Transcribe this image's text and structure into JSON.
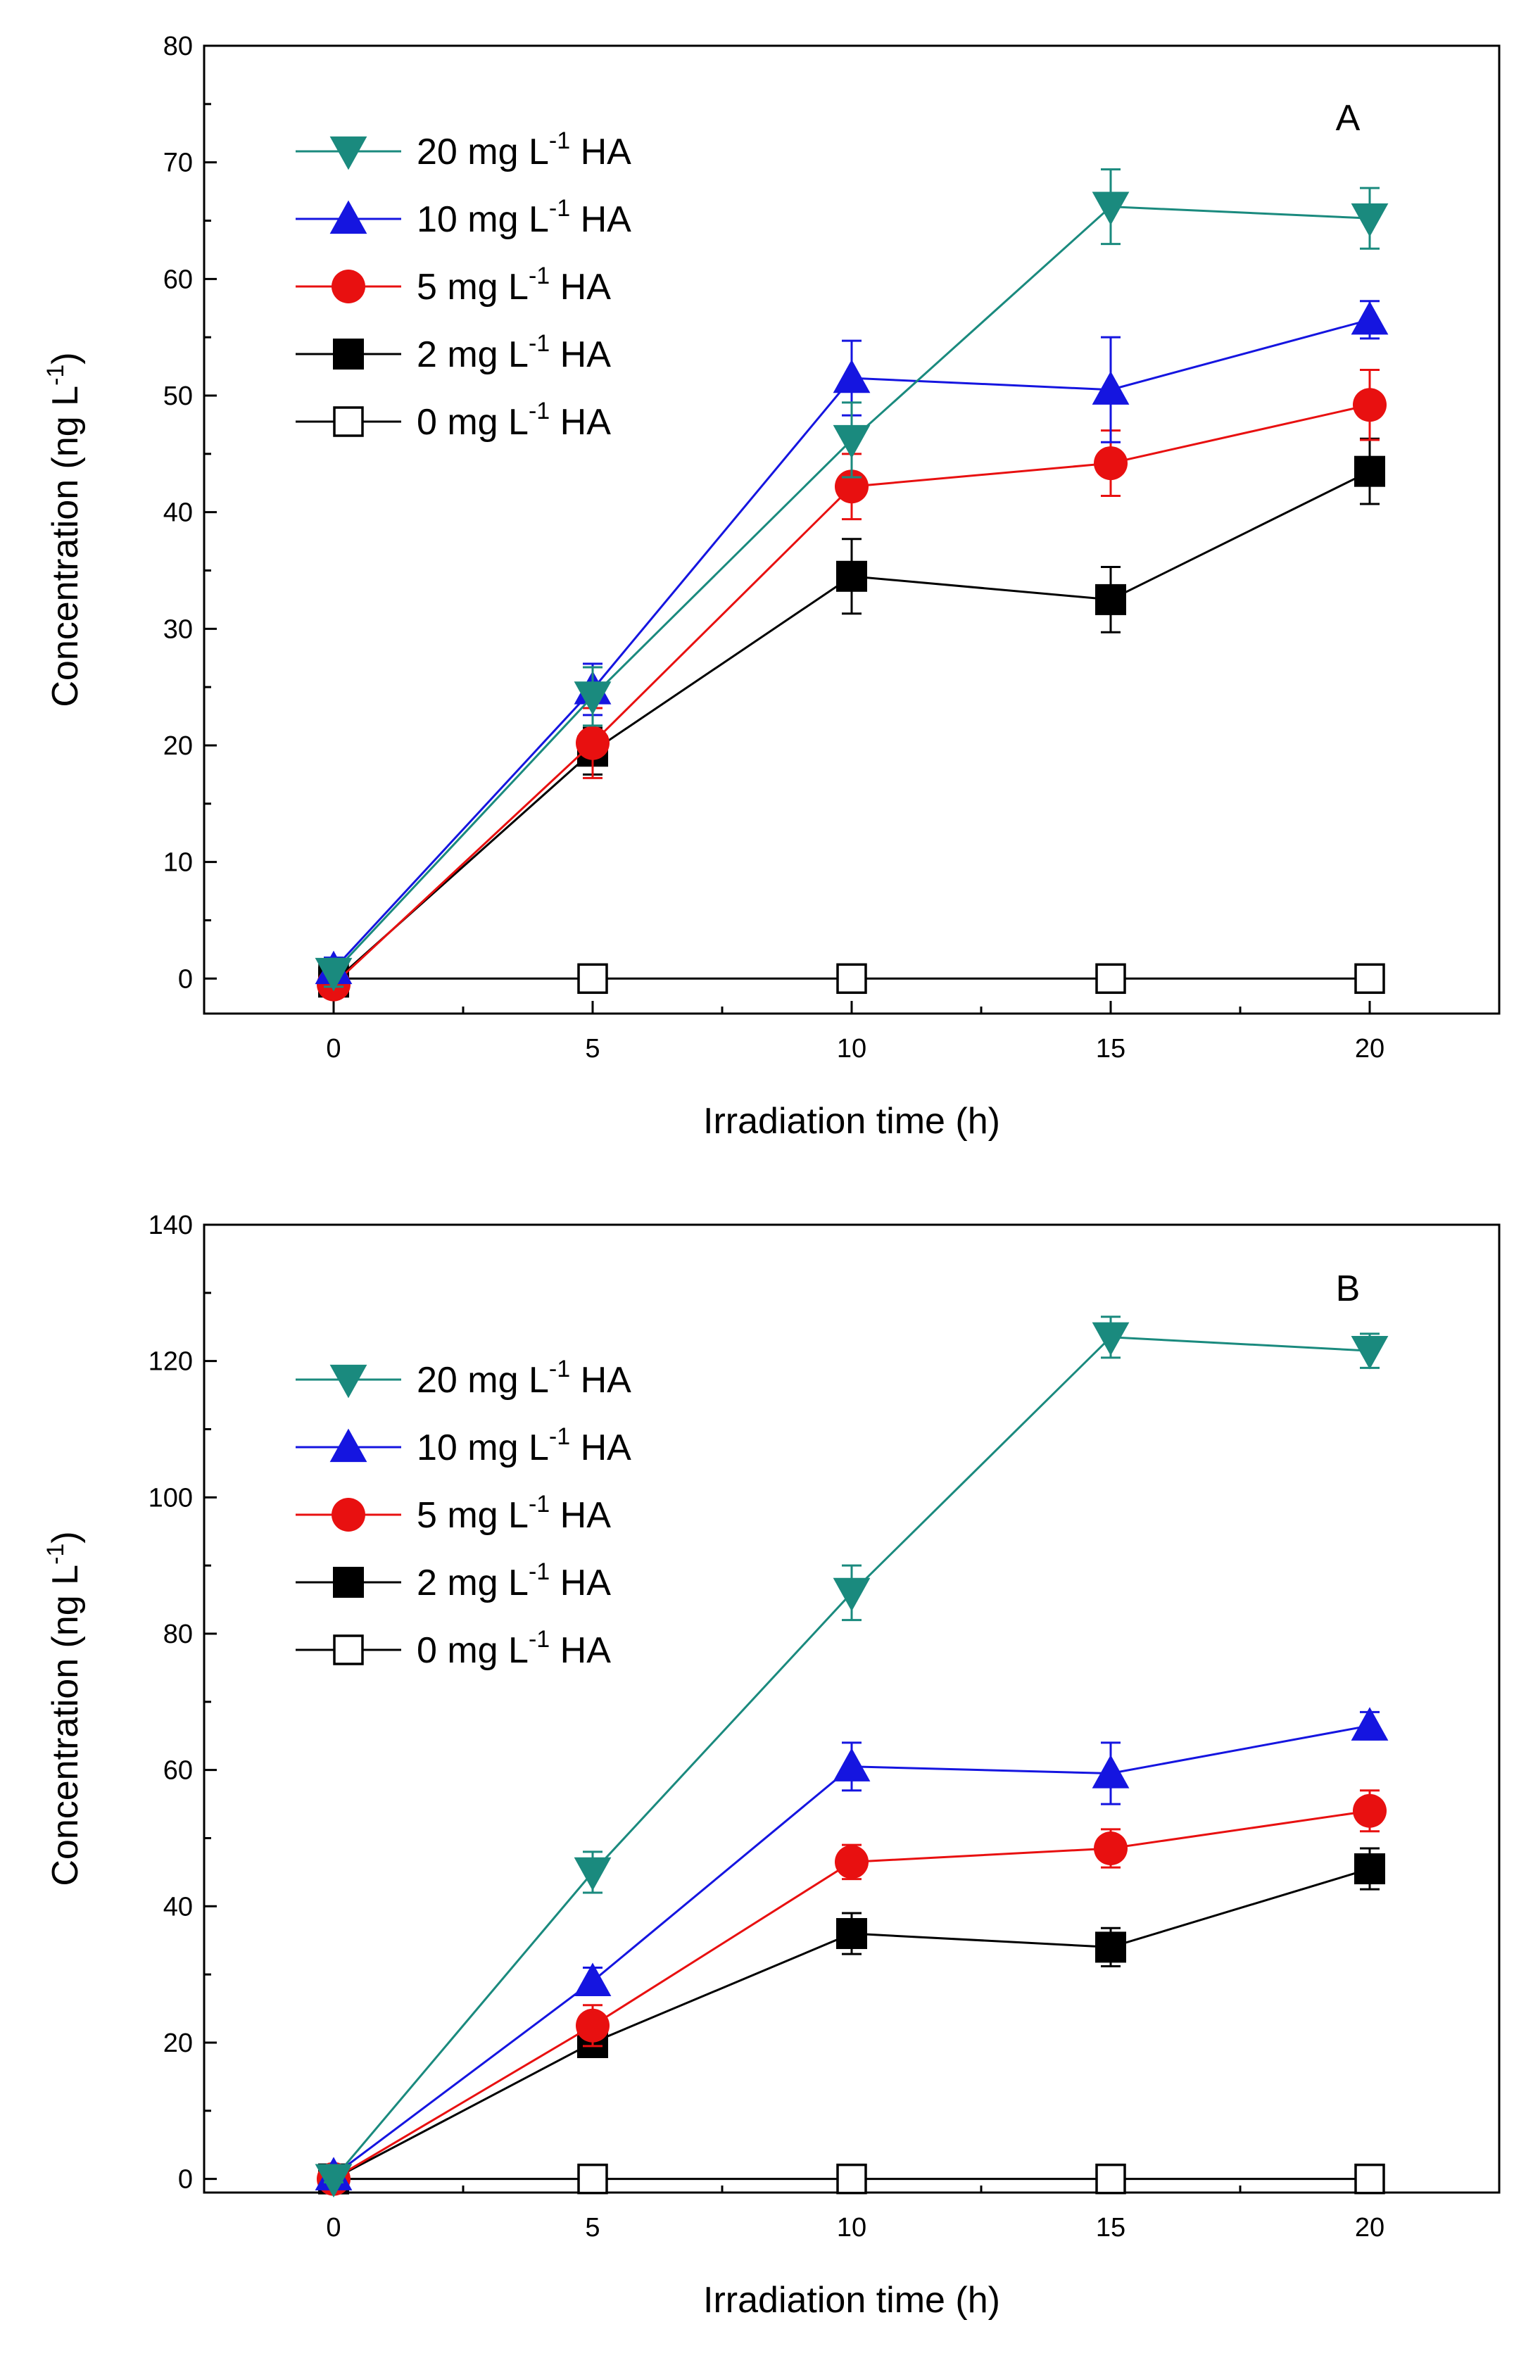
{
  "chart_data": [
    {
      "type": "line",
      "panel_label": "A",
      "title": "",
      "xlabel": "Irradiation time (h)",
      "ylabel": "Concentration (ng L",
      "ylabel_sup": "-1",
      "ylabel_end": ")",
      "xlim": [
        -2.5,
        22.5
      ],
      "ylim": [
        -3,
        80
      ],
      "xticks": [
        0,
        5,
        10,
        15,
        20
      ],
      "yticks": [
        0,
        10,
        20,
        30,
        40,
        50,
        60,
        70,
        80
      ],
      "x": [
        0,
        5,
        10,
        15,
        20
      ],
      "legend_position": "top-left",
      "series": [
        {
          "name": "20 mg L-1 HA",
          "legend_pre": "20 mg L",
          "legend_sup": "-1",
          "legend_post": " HA",
          "color": "#1a8a7e",
          "marker": "triangle-down",
          "values": [
            0.5,
            24.2,
            46.2,
            66.2,
            65.2
          ],
          "errors": [
            1.2,
            2.5,
            3.2,
            3.2,
            2.6
          ]
        },
        {
          "name": "10 mg L-1 HA",
          "legend_pre": "10 mg L",
          "legend_sup": "-1",
          "legend_post": " HA",
          "color": "#1515e0",
          "marker": "triangle-up",
          "values": [
            0.8,
            24.8,
            51.5,
            50.5,
            56.5
          ],
          "errors": [
            1.0,
            2.2,
            3.2,
            4.5,
            1.6
          ]
        },
        {
          "name": "5 mg L-1 HA",
          "legend_pre": "5 mg L",
          "legend_sup": "-1",
          "legend_post": " HA",
          "color": "#e81010",
          "marker": "circle",
          "values": [
            -0.5,
            20.2,
            42.2,
            44.2,
            49.2
          ],
          "errors": [
            1.0,
            3.0,
            2.8,
            2.8,
            3.0
          ]
        },
        {
          "name": "2 mg L-1 HA",
          "legend_pre": "2 mg L",
          "legend_sup": "-1",
          "legend_post": " HA",
          "color": "#000000",
          "marker": "square",
          "values": [
            -0.3,
            19.5,
            34.5,
            32.5,
            43.5
          ],
          "errors": [
            0.8,
            2.0,
            3.2,
            2.8,
            2.8
          ]
        },
        {
          "name": "0 mg L-1 HA",
          "legend_pre": "0 mg L",
          "legend_sup": "-1",
          "legend_post": " HA",
          "color": "#000000",
          "marker": "square-open",
          "values": [
            0,
            0,
            0,
            0,
            0
          ],
          "errors": [
            0,
            0,
            0,
            0,
            0
          ]
        }
      ]
    },
    {
      "type": "line",
      "panel_label": "B",
      "title": "",
      "xlabel": "Irradiation time (h)",
      "ylabel": "Concentration (ng L",
      "ylabel_sup": "-1",
      "ylabel_end": ")",
      "xlim": [
        -2.5,
        22.5
      ],
      "ylim": [
        -2,
        140
      ],
      "xticks": [
        0,
        5,
        10,
        15,
        20
      ],
      "yticks": [
        0,
        20,
        40,
        60,
        80,
        100,
        120,
        140
      ],
      "x": [
        0,
        5,
        10,
        15,
        20
      ],
      "legend_position": "top-left",
      "series": [
        {
          "name": "20 mg L-1 HA",
          "legend_pre": "20 mg L",
          "legend_sup": "-1",
          "legend_post": " HA",
          "color": "#1a8a7e",
          "marker": "triangle-down",
          "values": [
            0,
            45.0,
            86.0,
            123.5,
            121.5
          ],
          "errors": [
            0.5,
            3.0,
            4.0,
            3.0,
            2.5
          ]
        },
        {
          "name": "10 mg L-1 HA",
          "legend_pre": "10 mg L",
          "legend_sup": "-1",
          "legend_post": " HA",
          "color": "#1515e0",
          "marker": "triangle-up",
          "values": [
            0.5,
            29.0,
            60.5,
            59.5,
            66.5
          ],
          "errors": [
            0.5,
            2.0,
            3.5,
            4.5,
            2.0
          ]
        },
        {
          "name": "5 mg L-1 HA",
          "legend_pre": "5 mg L",
          "legend_sup": "-1",
          "legend_post": " HA",
          "color": "#e81010",
          "marker": "circle",
          "values": [
            0,
            22.5,
            46.5,
            48.5,
            54.0
          ],
          "errors": [
            0.5,
            3.0,
            2.5,
            2.8,
            3.0
          ]
        },
        {
          "name": "2 mg L-1 HA",
          "legend_pre": "2 mg L",
          "legend_sup": "-1",
          "legend_post": " HA",
          "color": "#000000",
          "marker": "square",
          "values": [
            0,
            20.0,
            36.0,
            34.0,
            45.5
          ],
          "errors": [
            0.5,
            1.5,
            3.0,
            2.8,
            3.0
          ]
        },
        {
          "name": "0 mg L-1 HA",
          "legend_pre": "0 mg L",
          "legend_sup": "-1",
          "legend_post": " HA",
          "color": "#000000",
          "marker": "square-open",
          "values": [
            0,
            0,
            0,
            0,
            0
          ],
          "errors": [
            0,
            0,
            0,
            0,
            0
          ]
        }
      ]
    }
  ]
}
